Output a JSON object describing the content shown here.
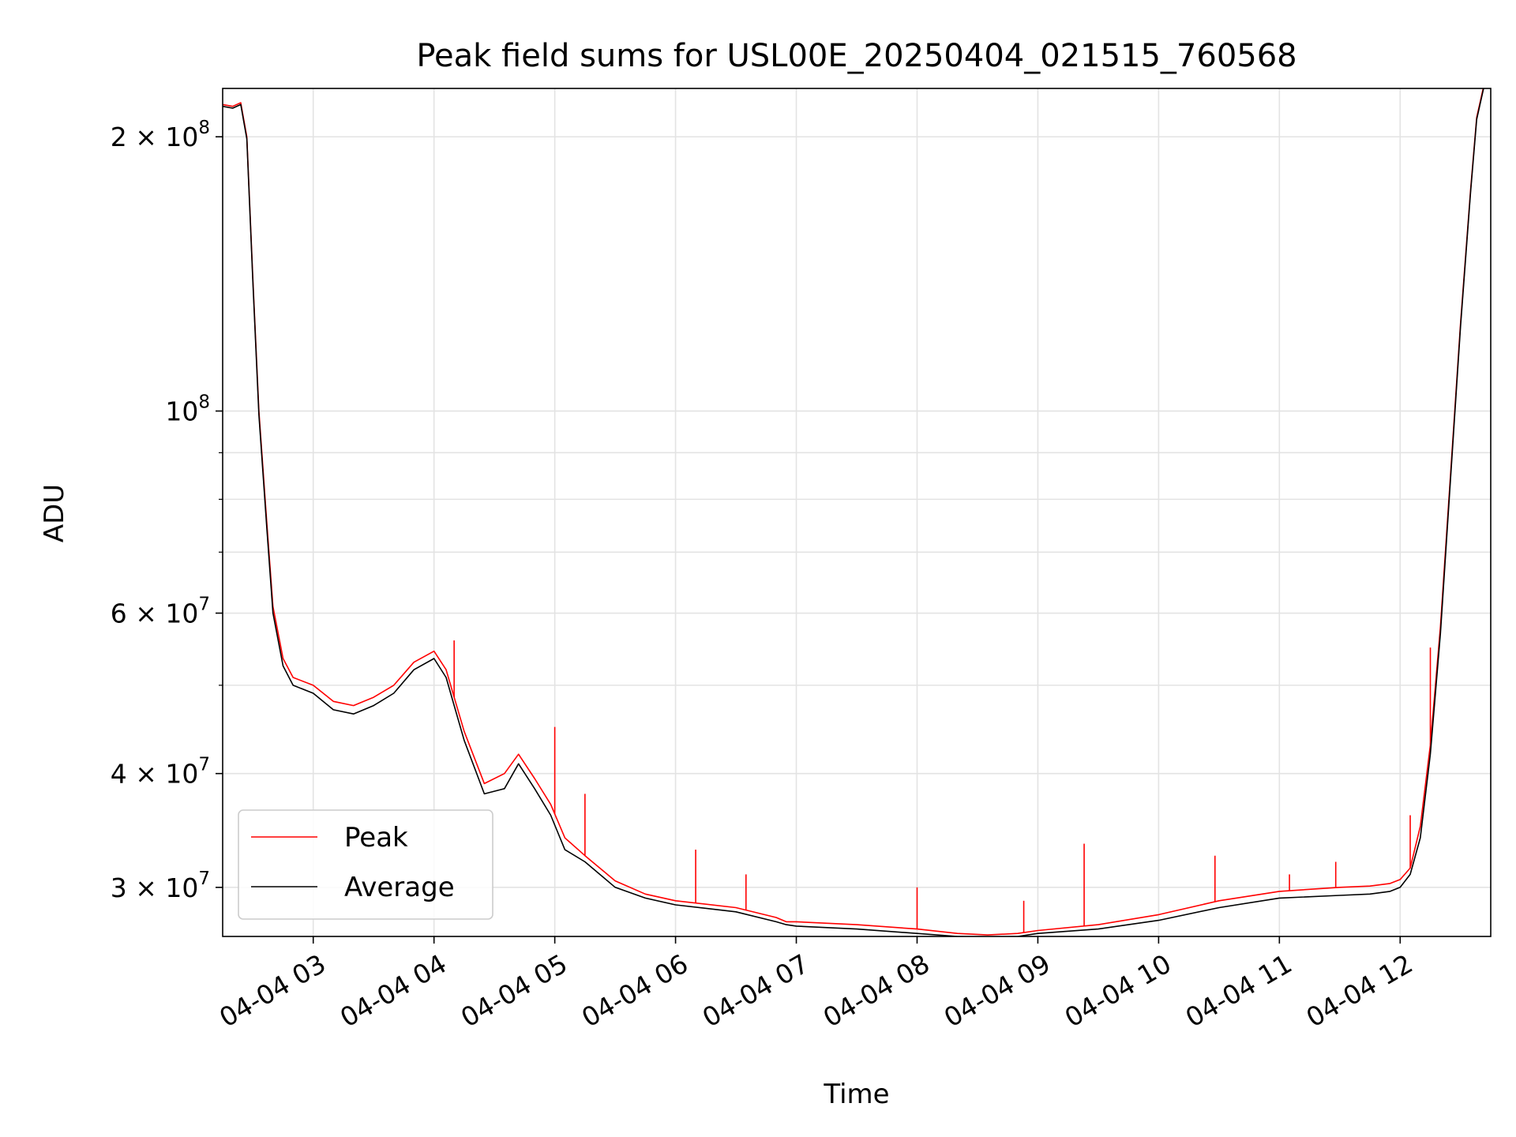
{
  "chart_data": {
    "type": "line",
    "title": "Peak field sums for USL00E_20250404_021515_760568",
    "xlabel": "Time",
    "ylabel": "ADU",
    "yscale": "log",
    "grid": true,
    "legend_position": "lower-left",
    "x_start": "2025-04-04 02:15",
    "x_end": "2025-04-04 12:42",
    "xlim": [
      "2025-04-04 02:15",
      "2025-04-04 12:45"
    ],
    "ylim": [
      26500000,
      226000000
    ],
    "x_ticks": [
      "2025-04-04 03:00",
      "2025-04-04 04:00",
      "2025-04-04 05:00",
      "2025-04-04 06:00",
      "2025-04-04 07:00",
      "2025-04-04 08:00",
      "2025-04-04 09:00",
      "2025-04-04 10:00",
      "2025-04-04 11:00",
      "2025-04-04 12:00"
    ],
    "x_tick_labels": [
      "04-04 03",
      "04-04 04",
      "04-04 05",
      "04-04 06",
      "04-04 07",
      "04-04 08",
      "04-04 09",
      "04-04 10",
      "04-04 11",
      "04-04 12"
    ],
    "y_ticks": [
      30000000,
      40000000,
      60000000,
      100000000,
      200000000
    ],
    "y_tick_labels": [
      {
        "base": "3 × 10",
        "exp": "7"
      },
      {
        "base": "4 × 10",
        "exp": "7"
      },
      {
        "base": "6 × 10",
        "exp": "7"
      },
      {
        "base": "10",
        "exp": "8"
      },
      {
        "base": "2 × 10",
        "exp": "8"
      }
    ],
    "y_minor_ticks": [
      50000000,
      70000000,
      80000000,
      90000000
    ],
    "series": [
      {
        "name": "Peak",
        "color": "#ff0000",
        "x": [
          "2025-04-04 02:15",
          "2025-04-04 02:20",
          "2025-04-04 02:24",
          "2025-04-04 02:27",
          "2025-04-04 02:30",
          "2025-04-04 02:33",
          "2025-04-04 02:37",
          "2025-04-04 02:40",
          "2025-04-04 02:45",
          "2025-04-04 02:50",
          "2025-04-04 03:00",
          "2025-04-04 03:10",
          "2025-04-04 03:20",
          "2025-04-04 03:30",
          "2025-04-04 03:40",
          "2025-04-04 03:50",
          "2025-04-04 04:00",
          "2025-04-04 04:06",
          "2025-04-04 04:10",
          "2025-04-04 04:15",
          "2025-04-04 04:25",
          "2025-04-04 04:35",
          "2025-04-04 04:42",
          "2025-04-04 04:50",
          "2025-04-04 04:58",
          "2025-04-04 05:05",
          "2025-04-04 05:15",
          "2025-04-04 05:30",
          "2025-04-04 05:45",
          "2025-04-04 06:00",
          "2025-04-04 06:30",
          "2025-04-04 06:50",
          "2025-04-04 06:55",
          "2025-04-04 07:00",
          "2025-04-04 07:30",
          "2025-04-04 08:00",
          "2025-04-04 08:20",
          "2025-04-04 08:35",
          "2025-04-04 08:50",
          "2025-04-04 09:00",
          "2025-04-04 09:30",
          "2025-04-04 10:00",
          "2025-04-04 10:30",
          "2025-04-04 11:00",
          "2025-04-04 11:30",
          "2025-04-04 11:45",
          "2025-04-04 11:55",
          "2025-04-04 12:00",
          "2025-04-04 12:05",
          "2025-04-04 12:10",
          "2025-04-04 12:15",
          "2025-04-04 12:20",
          "2025-04-04 12:25",
          "2025-04-04 12:30",
          "2025-04-04 12:35",
          "2025-04-04 12:38",
          "2025-04-04 12:42"
        ],
        "y": [
          217000000,
          216000000,
          218000000,
          200000000,
          140000000,
          100000000,
          75000000,
          61000000,
          53500000,
          51000000,
          50000000,
          48000000,
          47500000,
          48500000,
          50000000,
          53000000,
          54500000,
          52000000,
          48500000,
          44500000,
          39000000,
          40000000,
          42000000,
          39500000,
          37000000,
          34000000,
          32500000,
          30500000,
          29500000,
          29000000,
          28500000,
          27800000,
          27500000,
          27500000,
          27300000,
          27000000,
          26700000,
          26600000,
          26700000,
          26900000,
          27300000,
          28000000,
          29000000,
          29700000,
          30000000,
          30100000,
          30300000,
          30600000,
          31500000,
          35000000,
          43000000,
          58000000,
          85000000,
          125000000,
          175000000,
          210000000,
          230000000
        ],
        "spikes": [
          {
            "x": "2025-04-04 04:10",
            "y": 56000000
          },
          {
            "x": "2025-04-04 05:00",
            "y": 45000000
          },
          {
            "x": "2025-04-04 05:15",
            "y": 38000000
          },
          {
            "x": "2025-04-04 06:10",
            "y": 33000000
          },
          {
            "x": "2025-04-04 06:35",
            "y": 31000000
          },
          {
            "x": "2025-04-04 08:00",
            "y": 30000000
          },
          {
            "x": "2025-04-04 08:53",
            "y": 29000000
          },
          {
            "x": "2025-04-04 09:23",
            "y": 33500000
          },
          {
            "x": "2025-04-04 10:28",
            "y": 32500000
          },
          {
            "x": "2025-04-04 11:05",
            "y": 31000000
          },
          {
            "x": "2025-04-04 11:28",
            "y": 32000000
          },
          {
            "x": "2025-04-04 12:05",
            "y": 36000000
          },
          {
            "x": "2025-04-04 12:15",
            "y": 55000000
          }
        ]
      },
      {
        "name": "Average",
        "color": "#000000",
        "x": [
          "2025-04-04 02:15",
          "2025-04-04 02:20",
          "2025-04-04 02:24",
          "2025-04-04 02:27",
          "2025-04-04 02:30",
          "2025-04-04 02:33",
          "2025-04-04 02:37",
          "2025-04-04 02:40",
          "2025-04-04 02:45",
          "2025-04-04 02:50",
          "2025-04-04 03:00",
          "2025-04-04 03:10",
          "2025-04-04 03:20",
          "2025-04-04 03:30",
          "2025-04-04 03:40",
          "2025-04-04 03:50",
          "2025-04-04 04:00",
          "2025-04-04 04:06",
          "2025-04-04 04:10",
          "2025-04-04 04:15",
          "2025-04-04 04:25",
          "2025-04-04 04:35",
          "2025-04-04 04:42",
          "2025-04-04 04:50",
          "2025-04-04 04:58",
          "2025-04-04 05:05",
          "2025-04-04 05:15",
          "2025-04-04 05:30",
          "2025-04-04 05:45",
          "2025-04-04 06:00",
          "2025-04-04 06:30",
          "2025-04-04 06:50",
          "2025-04-04 06:55",
          "2025-04-04 07:00",
          "2025-04-04 07:30",
          "2025-04-04 08:00",
          "2025-04-04 08:20",
          "2025-04-04 08:35",
          "2025-04-04 08:50",
          "2025-04-04 09:00",
          "2025-04-04 09:30",
          "2025-04-04 10:00",
          "2025-04-04 10:30",
          "2025-04-04 11:00",
          "2025-04-04 11:30",
          "2025-04-04 11:45",
          "2025-04-04 11:55",
          "2025-04-04 12:00",
          "2025-04-04 12:05",
          "2025-04-04 12:10",
          "2025-04-04 12:15",
          "2025-04-04 12:20",
          "2025-04-04 12:25",
          "2025-04-04 12:30",
          "2025-04-04 12:35",
          "2025-04-04 12:38",
          "2025-04-04 12:42"
        ],
        "y": [
          216000000,
          215000000,
          217000000,
          199000000,
          139000000,
          99000000,
          74000000,
          60000000,
          52500000,
          50000000,
          49000000,
          47000000,
          46500000,
          47500000,
          49000000,
          52000000,
          53500000,
          51000000,
          47500000,
          43500000,
          38000000,
          38500000,
          41000000,
          38500000,
          36000000,
          33000000,
          32000000,
          30000000,
          29200000,
          28700000,
          28200000,
          27500000,
          27300000,
          27200000,
          27000000,
          26700000,
          26500000,
          26450000,
          26500000,
          26700000,
          27000000,
          27600000,
          28500000,
          29200000,
          29400000,
          29500000,
          29700000,
          30000000,
          31000000,
          34000000,
          42000000,
          57000000,
          84000000,
          124000000,
          174000000,
          209000000,
          229000000
        ]
      }
    ]
  }
}
